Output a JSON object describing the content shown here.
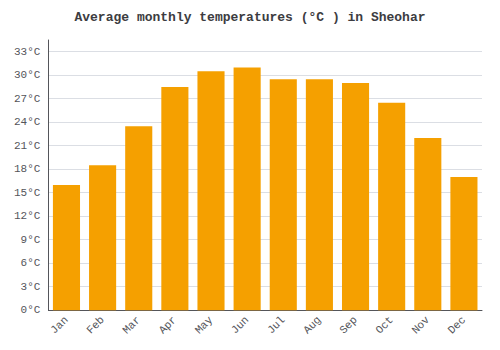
{
  "chart_data": {
    "type": "bar",
    "title": "Average monthly temperatures (°C ) in Sheohar",
    "categories": [
      "Jan",
      "Feb",
      "Mar",
      "Apr",
      "May",
      "Jun",
      "Jul",
      "Aug",
      "Sep",
      "Oct",
      "Nov",
      "Dec"
    ],
    "values": [
      16.0,
      18.5,
      23.5,
      28.5,
      30.5,
      31.0,
      29.5,
      29.5,
      29.0,
      26.5,
      22.0,
      17.0
    ],
    "color": "#F5A000",
    "ylim": [
      0,
      34.5
    ],
    "yticks": [
      {
        "value": 0,
        "label": "0°C"
      },
      {
        "value": 3,
        "label": "3°C"
      },
      {
        "value": 6,
        "label": "6°C"
      },
      {
        "value": 9,
        "label": "9°C"
      },
      {
        "value": 12,
        "label": "12°C"
      },
      {
        "value": 15,
        "label": "15°C"
      },
      {
        "value": 18,
        "label": "18°C"
      },
      {
        "value": 21,
        "label": "21°C"
      },
      {
        "value": 24,
        "label": "24°C"
      },
      {
        "value": 27,
        "label": "27°C"
      },
      {
        "value": 30,
        "label": "30°C"
      },
      {
        "value": 33,
        "label": "33°C"
      }
    ],
    "grid": true
  }
}
